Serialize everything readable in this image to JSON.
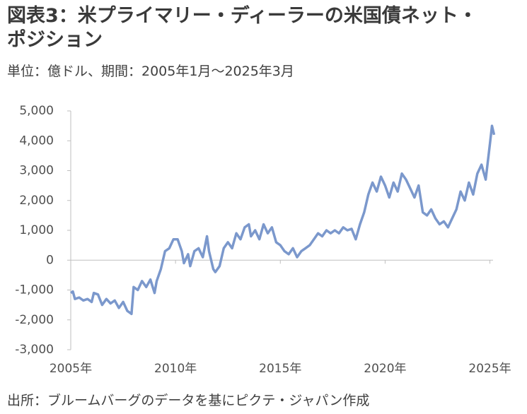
{
  "chart_data": {
    "type": "line",
    "title": "図表3：米プライマリー・ディーラーの米国債ネット・ポジション",
    "subtitle": "単位：億ドル、期間：2005年1月～2025年3月",
    "source": "出所：ブルームバーグのデータを基にピクテ・ジャパン作成",
    "x": [
      2005.0,
      2005.1,
      2005.2,
      2005.4,
      2005.6,
      2005.8,
      2006.0,
      2006.1,
      2006.3,
      2006.5,
      2006.7,
      2006.9,
      2007.1,
      2007.3,
      2007.5,
      2007.7,
      2007.9,
      2008.0,
      2008.2,
      2008.4,
      2008.6,
      2008.8,
      2009.0,
      2009.1,
      2009.3,
      2009.5,
      2009.7,
      2009.9,
      2010.1,
      2010.3,
      2010.4,
      2010.6,
      2010.7,
      2010.9,
      2011.1,
      2011.3,
      2011.5,
      2011.6,
      2011.8,
      2011.9,
      2012.1,
      2012.3,
      2012.5,
      2012.7,
      2012.9,
      2013.1,
      2013.3,
      2013.5,
      2013.6,
      2013.8,
      2014.0,
      2014.2,
      2014.4,
      2014.6,
      2014.8,
      2015.0,
      2015.2,
      2015.4,
      2015.6,
      2015.8,
      2016.0,
      2016.2,
      2016.4,
      2016.6,
      2016.8,
      2017.0,
      2017.2,
      2017.4,
      2017.6,
      2017.8,
      2018.0,
      2018.2,
      2018.4,
      2018.6,
      2018.8,
      2019.0,
      2019.2,
      2019.4,
      2019.6,
      2019.8,
      2020.0,
      2020.2,
      2020.4,
      2020.6,
      2020.8,
      2021.0,
      2021.2,
      2021.4,
      2021.6,
      2021.8,
      2022.0,
      2022.2,
      2022.4,
      2022.6,
      2022.8,
      2023.0,
      2023.2,
      2023.4,
      2023.6,
      2023.8,
      2024.0,
      2024.2,
      2024.4,
      2024.6,
      2024.8,
      2025.0,
      2025.1,
      2025.2
    ],
    "series": [
      {
        "name": "米国債ネット・ポジション",
        "color": "#7b98cc",
        "values": [
          -1100,
          -1050,
          -1300,
          -1250,
          -1350,
          -1300,
          -1400,
          -1100,
          -1150,
          -1500,
          -1300,
          -1450,
          -1350,
          -1600,
          -1400,
          -1700,
          -1800,
          -900,
          -1000,
          -700,
          -900,
          -650,
          -1100,
          -700,
          -300,
          300,
          400,
          700,
          700,
          300,
          -100,
          200,
          -200,
          300,
          400,
          100,
          800,
          300,
          -300,
          -400,
          -200,
          400,
          600,
          400,
          900,
          700,
          1100,
          1200,
          800,
          1000,
          700,
          1200,
          900,
          1100,
          600,
          500,
          300,
          200,
          400,
          100,
          300,
          400,
          500,
          700,
          900,
          800,
          1000,
          900,
          1000,
          900,
          1100,
          1000,
          1050,
          700,
          1200,
          1600,
          2200,
          2600,
          2300,
          2800,
          2500,
          2100,
          2600,
          2300,
          2900,
          2700,
          2400,
          2100,
          2500,
          1600,
          1500,
          1700,
          1400,
          1200,
          1300,
          1100,
          1400,
          1700,
          2300,
          2000,
          2600,
          2200,
          2900,
          3200,
          2700,
          3900,
          4500,
          4200
        ]
      }
    ],
    "xlim": [
      2005,
      2025.15
    ],
    "xticks": [
      {
        "value": 2005,
        "label": "2005年"
      },
      {
        "value": 2010,
        "label": "2010年"
      },
      {
        "value": 2015,
        "label": "2015年"
      },
      {
        "value": 2020,
        "label": "2020年"
      },
      {
        "value": 2025,
        "label": "2025年"
      }
    ],
    "ylim": [
      -3000,
      5000
    ],
    "yticks": [
      {
        "value": -3000,
        "label": "-3,000"
      },
      {
        "value": -2000,
        "label": "-2,000"
      },
      {
        "value": -1000,
        "label": "-1,000"
      },
      0,
      {
        "value": 1000,
        "label": "1,000"
      },
      {
        "value": 2000,
        "label": "2,000"
      },
      {
        "value": 3000,
        "label": "3,000"
      },
      {
        "value": 4000,
        "label": "4,000"
      },
      {
        "value": 5000,
        "label": "5,000"
      }
    ]
  }
}
